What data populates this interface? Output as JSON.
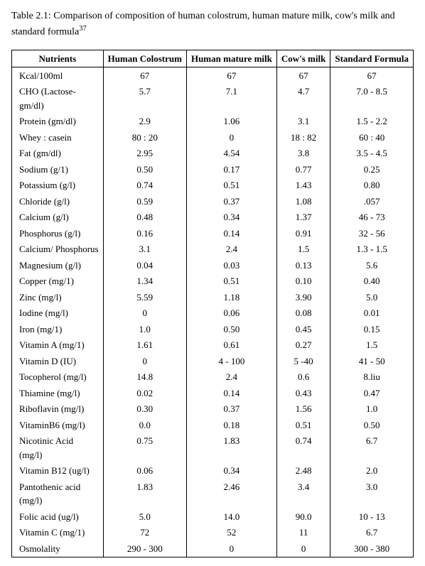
{
  "caption_prefix": "Table 2.1: Comparison of composition of human colostrum, human mature milk, cow's milk and standard formula",
  "caption_sup": "37",
  "columns": [
    "Nutrients",
    "Human Colostrum",
    "Human mature milk",
    "Cow's milk",
    "Standard Formula"
  ],
  "rows": [
    [
      "Kcal/100ml",
      "67",
      "67",
      "67",
      "67"
    ],
    [
      "CHO (Lactose- gm/dl)",
      "5.7",
      "7.1",
      "4.7",
      "7.0 - 8.5"
    ],
    [
      "Protein (gm/dl)",
      "2.9",
      "1.06",
      "3.1",
      "1.5 - 2.2"
    ],
    [
      "Whey : casein",
      "80 : 20",
      "0",
      "18 : 82",
      "60 : 40"
    ],
    [
      "Fat (gm/dl)",
      "2.95",
      "4.54",
      "3.8",
      "3.5 - 4.5"
    ],
    [
      "Sodium (g/1)",
      "0.50",
      "0.17",
      "0.77",
      "0.25"
    ],
    [
      "Potassium (g/l)",
      "0.74",
      "0.51",
      "1.43",
      "0.80"
    ],
    [
      "Chloride (g/l)",
      "0.59",
      "0.37",
      "1.08",
      ".057"
    ],
    [
      "Calcium (g/l)",
      "0.48",
      "0.34",
      "1.37",
      "46 - 73"
    ],
    [
      "Phosphorus (g/l)",
      "0.16",
      "0.14",
      "0.91",
      "32 - 56"
    ],
    [
      "Calcium/ Phosphorus",
      "3.1",
      "2.4",
      "1.5",
      "1.3 - 1.5"
    ],
    [
      "Magnesium (g/l)",
      "0.04",
      "0.03",
      "0.13",
      "5.6"
    ],
    [
      "Copper (mg/1)",
      "1.34",
      "0.51",
      "0.10",
      "0.40"
    ],
    [
      "Zinc (mg/l)",
      "5.59",
      "1.18",
      "3.90",
      "5.0"
    ],
    [
      "Iodine (mg/l)",
      "0",
      "0.06",
      "0.08",
      "0.01"
    ],
    [
      "Iron (mg/1)",
      "1.0",
      "0.50",
      "0.45",
      "0.15"
    ],
    [
      "Vitamin A (mg/1)",
      "1.61",
      "0.61",
      "0.27",
      "1.5"
    ],
    [
      "Vitamin D (IU)",
      "0",
      "4 - 100",
      "5 -40",
      "41 - 50"
    ],
    [
      "Tocopherol (mg/l)",
      "14.8",
      "2.4",
      "0.6",
      "8.liu"
    ],
    [
      "Thiamine (mg/l)",
      "0.02",
      "0.14",
      "0.43",
      "0.47"
    ],
    [
      "Riboflavin (mg/l)",
      "0.30",
      "0.37",
      "1.56",
      "1.0"
    ],
    [
      "VitaminB6 (mg/l)",
      "0.0",
      "0.18",
      "0.51",
      "0.50"
    ],
    [
      "Nicotinic Acid (mg/l)",
      "0.75",
      "1.83",
      "0.74",
      "6.7"
    ],
    [
      "Vitamin B12 (ug/l)",
      "0.06",
      "0.34",
      "2.48",
      "2.0"
    ],
    [
      "Pantothenic acid (mg/l)",
      "1.83",
      "2.46",
      "3.4",
      "3.0"
    ],
    [
      "Folic acid (ug/l)",
      "5.0",
      "14.0",
      "90.0",
      "10 - 13"
    ],
    [
      "Vitamin C (mg/1)",
      "72",
      "52",
      "11",
      "6.7"
    ],
    [
      "Osmolality",
      "290 - 300",
      "0",
      "0",
      "300 - 380"
    ]
  ]
}
